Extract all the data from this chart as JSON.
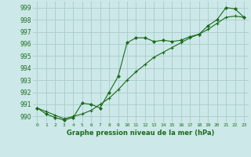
{
  "line1_x": [
    0,
    1,
    2,
    3,
    4,
    5,
    6,
    7,
    8,
    9,
    10,
    11,
    12,
    13,
    14,
    15,
    16,
    17,
    18,
    19,
    20,
    21,
    22,
    23
  ],
  "line1_y": [
    990.7,
    990.2,
    989.9,
    989.7,
    989.9,
    991.1,
    991.0,
    990.7,
    992.0,
    993.3,
    996.1,
    996.5,
    996.5,
    996.2,
    996.3,
    996.2,
    996.3,
    996.6,
    996.8,
    997.5,
    998.0,
    999.0,
    998.9,
    998.2
  ],
  "line2_x": [
    0,
    1,
    2,
    3,
    4,
    5,
    6,
    7,
    8,
    9,
    10,
    11,
    12,
    13,
    14,
    15,
    16,
    17,
    18,
    19,
    20,
    21,
    22,
    23
  ],
  "line2_y": [
    990.7,
    990.4,
    990.1,
    989.8,
    990.0,
    990.2,
    990.5,
    991.0,
    991.5,
    992.2,
    993.0,
    993.7,
    994.3,
    994.9,
    995.3,
    995.7,
    996.1,
    996.5,
    996.8,
    997.2,
    997.7,
    998.2,
    998.3,
    998.2
  ],
  "line_color": "#1a6b1a",
  "bg_color": "#cce8e8",
  "grid_color": "#aacccc",
  "xlabel": "Graphe pression niveau de la mer (hPa)",
  "ylim": [
    989.5,
    999.5
  ],
  "xlim": [
    -0.5,
    23.5
  ],
  "yticks": [
    990,
    991,
    992,
    993,
    994,
    995,
    996,
    997,
    998,
    999
  ],
  "xticks": [
    0,
    1,
    2,
    3,
    4,
    5,
    6,
    7,
    8,
    9,
    10,
    11,
    12,
    13,
    14,
    15,
    16,
    17,
    18,
    19,
    20,
    21,
    22,
    23
  ]
}
